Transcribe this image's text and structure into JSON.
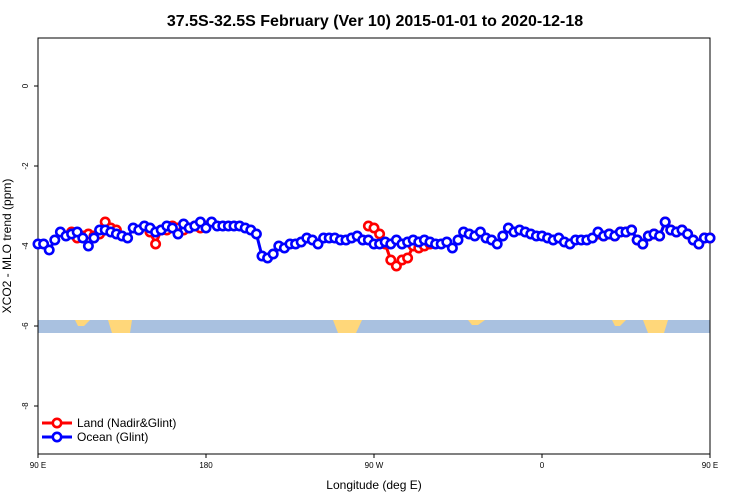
{
  "chart_data": {
    "type": "line",
    "title": "37.5S-32.5S February (Ver 10)   2015-01-01 to 2020-12-18",
    "xlabel": "Longitude (deg E)",
    "ylabel": "XCO2 - MLO trend (ppm)",
    "xlim": [
      90,
      450
    ],
    "ylim": [
      -9.2,
      1.2
    ],
    "x_ticks": [
      {
        "value": 90,
        "label": "90 E"
      },
      {
        "value": 180,
        "label": "180"
      },
      {
        "value": 270,
        "label": "90 W"
      },
      {
        "value": 360,
        "label": "0"
      },
      {
        "value": 450,
        "label": "90 E"
      },
      {
        "value": 540,
        "label": "180"
      }
    ],
    "y_ticks": [
      {
        "value": 0,
        "label": "0"
      },
      {
        "value": -2,
        "label": "-2"
      },
      {
        "value": -4,
        "label": "-4"
      },
      {
        "value": -6,
        "label": "-6"
      },
      {
        "value": -8,
        "label": "-8"
      }
    ],
    "legend_position": "bottom-left",
    "series": [
      {
        "name": "Land (Nadir&Glint)",
        "color": "#ff0000",
        "x": [
          108,
          111,
          114,
          117,
          120,
          123,
          126,
          129,
          132,
          150,
          153,
          156,
          159,
          162,
          165,
          168,
          171,
          174,
          177,
          180,
          267,
          270,
          273,
          276,
          279,
          282,
          285,
          288,
          291,
          294,
          297,
          300,
          390,
          393,
          396,
          399,
          402,
          405,
          408,
          411,
          414,
          417,
          420,
          423,
          426,
          429,
          432,
          435,
          438,
          441,
          444,
          447,
          450,
          453,
          456,
          459,
          462,
          465,
          468,
          471,
          474,
          477,
          480,
          483,
          486,
          489,
          492,
          495,
          498
        ],
        "y": [
          -3.65,
          -3.8,
          -3.75,
          -3.7,
          -3.75,
          -3.7,
          -3.4,
          -3.55,
          -3.6,
          -3.65,
          -3.95,
          -3.6,
          -3.6,
          -3.5,
          -3.55,
          -3.6,
          -3.55,
          -3.5,
          -3.55,
          -3.5,
          -3.5,
          -3.55,
          -3.7,
          -3.95,
          -4.35,
          -4.5,
          -4.35,
          -4.3,
          -4.0,
          -4.05,
          -4.0,
          -3.95,
          -3.7,
          -3.75,
          -3.7,
          -3.75,
          -3.65,
          -3.65,
          -3.6,
          -3.85,
          -3.95,
          -3.75,
          -3.7,
          -3.75,
          -3.4,
          -3.6,
          -3.65,
          -3.6,
          -3.7,
          -3.85,
          -3.95,
          -3.8,
          -3.8,
          -3.75,
          -3.8,
          -3.75,
          -3.65,
          -3.7,
          -3.75,
          -3.7,
          -3.55,
          -3.6,
          -3.5,
          -3.65,
          -3.55,
          -3.6,
          -3.55,
          -3.5,
          -3.55
        ]
      },
      {
        "name": "Ocean (Glint)",
        "color": "#0000ff",
        "x": [
          90,
          93,
          96,
          99,
          102,
          105,
          108,
          111,
          114,
          117,
          120,
          123,
          126,
          129,
          132,
          135,
          138,
          141,
          144,
          147,
          150,
          153,
          156,
          159,
          162,
          165,
          168,
          171,
          174,
          177,
          180,
          183,
          186,
          189,
          192,
          195,
          198,
          201,
          204,
          207,
          210,
          213,
          216,
          219,
          222,
          225,
          228,
          231,
          234,
          237,
          240,
          243,
          246,
          249,
          252,
          255,
          258,
          261,
          264,
          267,
          270,
          273,
          276,
          279,
          282,
          285,
          288,
          291,
          294,
          297,
          300,
          303,
          306,
          309,
          312,
          315,
          318,
          321,
          324,
          327,
          330,
          333,
          336,
          339,
          342,
          345,
          348,
          351,
          354,
          357,
          360,
          363,
          366,
          369,
          372,
          375,
          378,
          381,
          384,
          387,
          390,
          393,
          396,
          399,
          402,
          405,
          408,
          411,
          414,
          417,
          420,
          423,
          426,
          429,
          432,
          435,
          438,
          441,
          444,
          447,
          450
        ],
        "y": [
          -3.95,
          -3.95,
          -4.1,
          -3.85,
          -3.65,
          -3.75,
          -3.7,
          -3.65,
          -3.8,
          -4.0,
          -3.8,
          -3.6,
          -3.6,
          -3.65,
          -3.7,
          -3.75,
          -3.8,
          -3.55,
          -3.6,
          -3.5,
          -3.55,
          -3.65,
          -3.6,
          -3.5,
          -3.55,
          -3.7,
          -3.45,
          -3.55,
          -3.5,
          -3.4,
          -3.55,
          -3.4,
          -3.5,
          -3.5,
          -3.5,
          -3.5,
          -3.5,
          -3.55,
          -3.6,
          -3.7,
          -4.25,
          -4.3,
          -4.2,
          -4.0,
          -4.05,
          -3.95,
          -3.95,
          -3.9,
          -3.8,
          -3.85,
          -3.95,
          -3.8,
          -3.8,
          -3.8,
          -3.85,
          -3.85,
          -3.8,
          -3.75,
          -3.85,
          -3.85,
          -3.95,
          -3.95,
          -3.9,
          -3.95,
          -3.85,
          -3.95,
          -3.9,
          -3.85,
          -3.9,
          -3.85,
          -3.9,
          -3.95,
          -3.95,
          -3.9,
          -4.05,
          -3.85,
          -3.65,
          -3.7,
          -3.75,
          -3.65,
          -3.8,
          -3.85,
          -3.95,
          -3.75,
          -3.55,
          -3.65,
          -3.6,
          -3.65,
          -3.7,
          -3.75,
          -3.75,
          -3.8,
          -3.85,
          -3.8,
          -3.9,
          -3.95,
          -3.85,
          -3.85,
          -3.85,
          -3.8,
          -3.65,
          -3.75,
          -3.7,
          -3.75,
          -3.65,
          -3.65,
          -3.6,
          -3.85,
          -3.95,
          -3.75,
          -3.7,
          -3.75,
          -3.4,
          -3.6,
          -3.65,
          -3.6,
          -3.7,
          -3.85,
          -3.95,
          -3.8,
          -3.8
        ]
      }
    ]
  }
}
